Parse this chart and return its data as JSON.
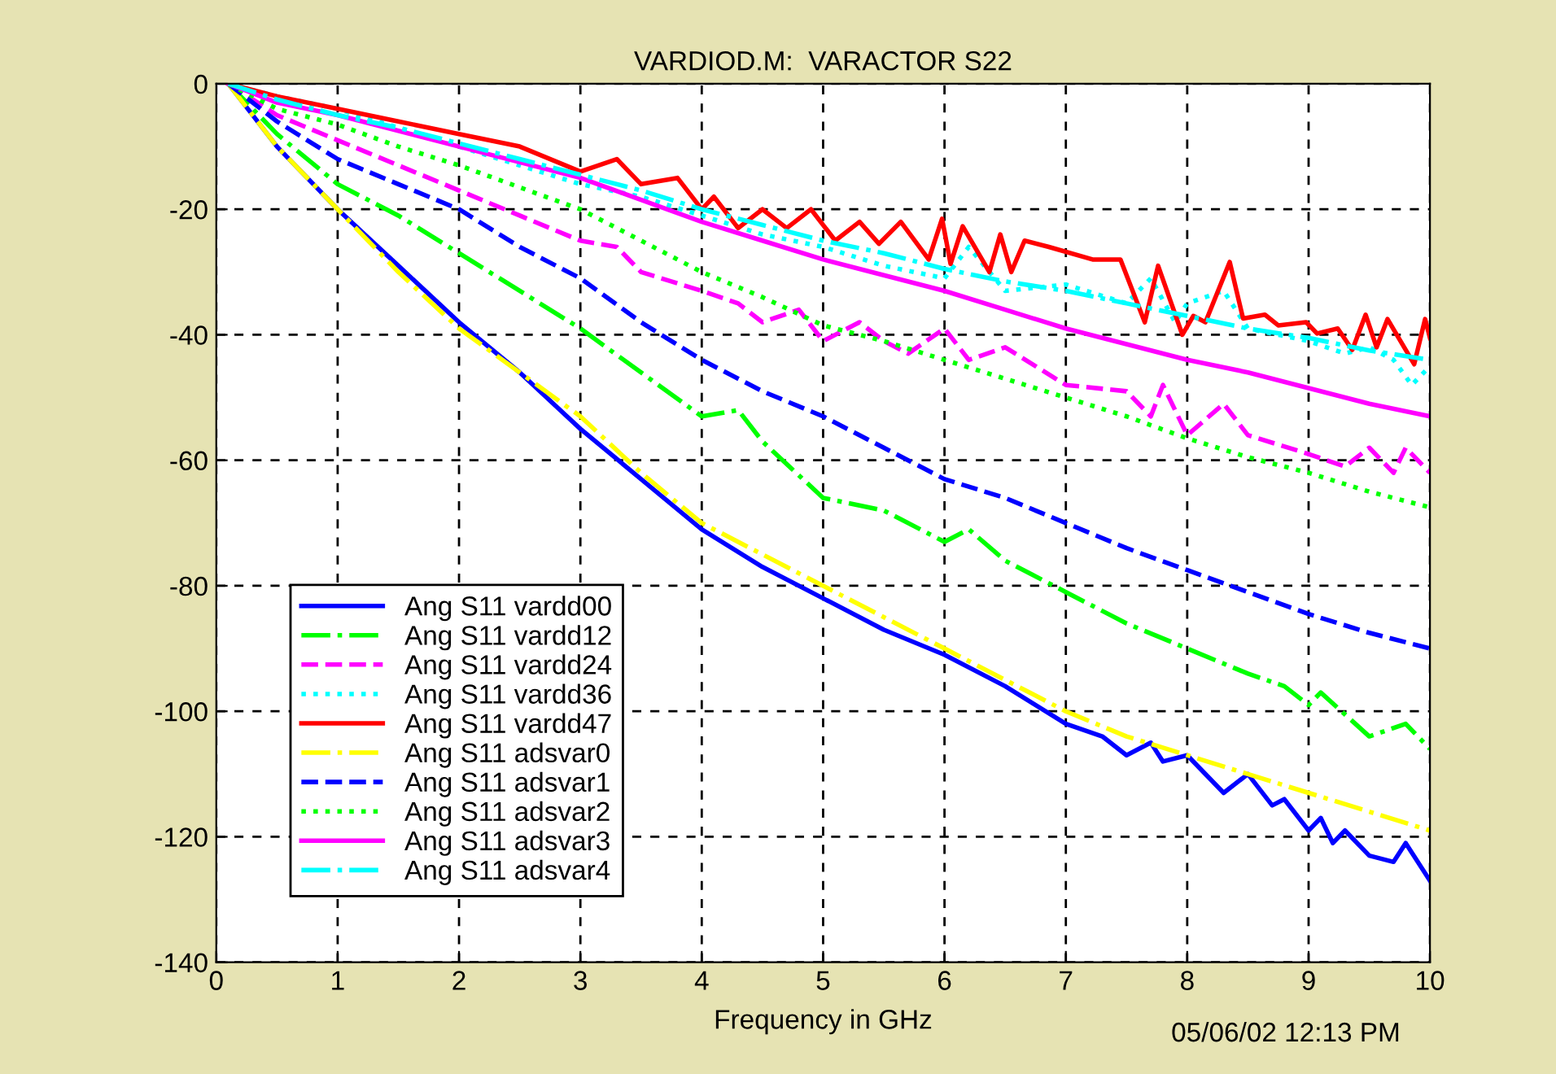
{
  "chart_data": {
    "type": "line",
    "title": "VARDIOD.M:  VARACTOR S22",
    "xlabel": "Frequency in GHz",
    "annotations": [
      "05/06/02 12:13 PM"
    ],
    "xlim": [
      0,
      10
    ],
    "xticks": [
      0,
      1,
      2,
      3,
      4,
      5,
      6,
      7,
      8,
      9,
      10
    ],
    "ylim": [
      -140,
      0
    ],
    "yticks": [
      -140,
      -120,
      -100,
      -80,
      -60,
      -40,
      -20,
      0
    ],
    "grid": true,
    "legend": "bottom left",
    "series": [
      {
        "name": "Ang S11 vardd00",
        "color": "#0000ff",
        "line_style": "solid",
        "x": [
          0.1,
          0.5,
          1,
          1.5,
          2,
          2.5,
          3,
          3.5,
          4,
          4.5,
          5,
          5.5,
          6,
          6.5,
          7,
          7.3,
          7.5,
          7.7,
          7.8,
          8,
          8.3,
          8.5,
          8.7,
          8.8,
          9,
          9.1,
          9.2,
          9.3,
          9.5,
          9.7,
          9.8,
          10
        ],
        "values": [
          0,
          -10,
          -20,
          -29,
          -38,
          -46,
          -55,
          -63,
          -71,
          -77,
          -82,
          -87,
          -91,
          -96,
          -102,
          -104,
          -107,
          -105,
          -108,
          -107,
          -113,
          -110,
          -115,
          -114,
          -119,
          -117,
          -121,
          -119,
          -123,
          -124,
          -121,
          -127
        ]
      },
      {
        "name": "Ang S11 vardd12",
        "color": "#00ff00",
        "line_style": "dashdot",
        "x": [
          0.1,
          0.5,
          1,
          1.5,
          2,
          2.5,
          3,
          3.5,
          4,
          4.3,
          4.5,
          5,
          5.5,
          6,
          6.2,
          6.5,
          7,
          7.5,
          8,
          8.5,
          8.8,
          9,
          9.1,
          9.5,
          9.8,
          10
        ],
        "values": [
          0,
          -8,
          -16,
          -21,
          -27,
          -33,
          -39,
          -46,
          -53,
          -52,
          -57,
          -66,
          -68,
          -73,
          -71,
          -76,
          -81,
          -86,
          -90,
          -94,
          -96,
          -99,
          -97,
          -104,
          -102,
          -106
        ]
      },
      {
        "name": "Ang S11 vardd24",
        "color": "#ff00ff",
        "line_style": "dashed",
        "x": [
          0.1,
          0.5,
          1,
          1.5,
          2,
          2.5,
          3,
          3.3,
          3.5,
          4,
          4.3,
          4.5,
          4.8,
          5,
          5.3,
          5.5,
          5.7,
          6,
          6.2,
          6.5,
          7,
          7.5,
          7.7,
          7.8,
          8,
          8.3,
          8.5,
          9,
          9.3,
          9.5,
          9.7,
          9.8,
          10
        ],
        "values": [
          0,
          -5,
          -9,
          -13,
          -17,
          -21,
          -25,
          -26,
          -30,
          -33,
          -35,
          -38,
          -36,
          -41,
          -38,
          -41,
          -43,
          -39,
          -44,
          -42,
          -48,
          -49,
          -53,
          -48,
          -56,
          -51,
          -56,
          -59,
          -61,
          -58,
          -62,
          -58,
          -62
        ]
      },
      {
        "name": "Ang S11 vardd36",
        "color": "#00ffff",
        "line_style": "dotted",
        "x": [
          0.1,
          0.5,
          1,
          1.5,
          2,
          2.5,
          3,
          3.5,
          4,
          4.5,
          5,
          5.5,
          6,
          6.2,
          6.5,
          7,
          7.5,
          7.7,
          7.9,
          8,
          8.3,
          8.5,
          9,
          9.3,
          9.5,
          9.7,
          9.85,
          10
        ],
        "values": [
          0,
          -2,
          -4,
          -7,
          -10,
          -13,
          -16,
          -18,
          -21,
          -24,
          -26,
          -29,
          -31,
          -26,
          -33,
          -32,
          -35,
          -31,
          -38,
          -35,
          -33,
          -39,
          -41,
          -43,
          -42,
          -44,
          -48,
          -45
        ]
      },
      {
        "name": "Ang S11 vardd47",
        "color": "#ff0000",
        "line_style": "solid",
        "x": [
          0.1,
          0.5,
          1,
          1.5,
          2,
          2.5,
          3,
          3.3,
          3.5,
          3.8,
          4,
          4.1,
          4.3,
          4.5,
          4.7,
          4.9,
          5.1,
          5.3,
          5.46,
          5.64,
          5.87,
          5.98,
          6.05,
          6.15,
          6.37,
          6.46,
          6.55,
          6.66,
          6.86,
          7.22,
          7.45,
          7.65,
          7.76,
          7.96,
          8.05,
          8.15,
          8.35,
          8.46,
          8.64,
          8.75,
          8.98,
          9.07,
          9.24,
          9.36,
          9.47,
          9.56,
          9.65,
          9.87,
          9.96,
          10
        ],
        "values": [
          0,
          -2,
          -4,
          -6,
          -8,
          -10,
          -14,
          -12,
          -16,
          -15,
          -20,
          -18,
          -23,
          -20,
          -23,
          -20,
          -25,
          -22,
          -25.5,
          -22,
          -28,
          -21.5,
          -28.7,
          -22.7,
          -30,
          -24,
          -30,
          -25,
          -26,
          -28,
          -28,
          -38,
          -29,
          -40,
          -37,
          -38,
          -28.4,
          -37.4,
          -36.8,
          -38.5,
          -38,
          -39.8,
          -39,
          -42.4,
          -36.8,
          -42,
          -37.5,
          -44.7,
          -37.5,
          -40.5
        ]
      },
      {
        "name": "Ang S11 adsvar0",
        "color": "#ffff00",
        "line_style": "dashdot",
        "x": [
          0.1,
          0.5,
          1,
          1.5,
          2,
          2.5,
          3,
          3.5,
          4,
          4.5,
          5,
          5.5,
          6,
          6.5,
          7,
          7.5,
          8,
          8.5,
          9,
          9.5,
          10
        ],
        "values": [
          0,
          -10,
          -20,
          -30,
          -39,
          -46,
          -53,
          -62,
          -70,
          -75,
          -80,
          -85,
          -90,
          -95,
          -100,
          -104,
          -107,
          -110,
          -113,
          -116,
          -119
        ]
      },
      {
        "name": "Ang S11 adsvar1",
        "color": "#0000ff",
        "line_style": "dashed",
        "x": [
          0.1,
          0.5,
          1,
          1.5,
          2,
          2.5,
          3,
          3.5,
          4,
          4.5,
          5,
          5.5,
          6,
          6.5,
          7,
          7.5,
          8,
          8.5,
          9,
          9.5,
          10
        ],
        "values": [
          0,
          -6,
          -12,
          -16,
          -20,
          -26,
          -31,
          -38,
          -44,
          -49,
          -53,
          -58,
          -63,
          -66,
          -70,
          -74,
          -77.5,
          -81,
          -84.5,
          -87.5,
          -90
        ]
      },
      {
        "name": "Ang S11 adsvar2",
        "color": "#00ff00",
        "line_style": "dotted",
        "x": [
          0.1,
          0.5,
          1,
          1.5,
          2,
          2.5,
          3,
          3.5,
          4,
          4.5,
          5,
          5.5,
          6,
          6.5,
          7,
          7.5,
          8,
          8.5,
          9,
          9.5,
          10
        ],
        "values": [
          0,
          -4,
          -6.5,
          -10,
          -13,
          -16.5,
          -20,
          -25,
          -30,
          -34,
          -38.5,
          -41,
          -44,
          -47,
          -50,
          -53,
          -56.5,
          -59.5,
          -62,
          -65,
          -67.5
        ]
      },
      {
        "name": "Ang S11 adsvar3",
        "color": "#ff00ff",
        "line_style": "solid",
        "x": [
          0.1,
          0.5,
          1,
          1.5,
          2,
          2.5,
          3,
          3.5,
          4,
          4.5,
          5,
          5.5,
          6,
          6.5,
          7,
          7.5,
          8,
          8.5,
          9,
          9.5,
          10
        ],
        "values": [
          0,
          -3,
          -5,
          -7.5,
          -10,
          -12.5,
          -15,
          -18.5,
          -22,
          -25,
          -28,
          -30.5,
          -33,
          -36,
          -39,
          -41.5,
          -44,
          -46,
          -48.5,
          -51,
          -53
        ]
      },
      {
        "name": "Ang S11 adsvar4",
        "color": "#00ffff",
        "line_style": "dashdot",
        "x": [
          0.1,
          0.5,
          1,
          1.5,
          2,
          2.5,
          3,
          3.5,
          4,
          4.5,
          5,
          5.5,
          6,
          6.5,
          7,
          7.5,
          8,
          8.5,
          9,
          9.5,
          10
        ],
        "values": [
          0,
          -2.5,
          -5,
          -7,
          -9.5,
          -12,
          -14.5,
          -17,
          -20,
          -22.5,
          -25,
          -27,
          -29.5,
          -31.5,
          -33,
          -35,
          -37,
          -39,
          -40.5,
          -42.5,
          -44
        ]
      }
    ]
  }
}
